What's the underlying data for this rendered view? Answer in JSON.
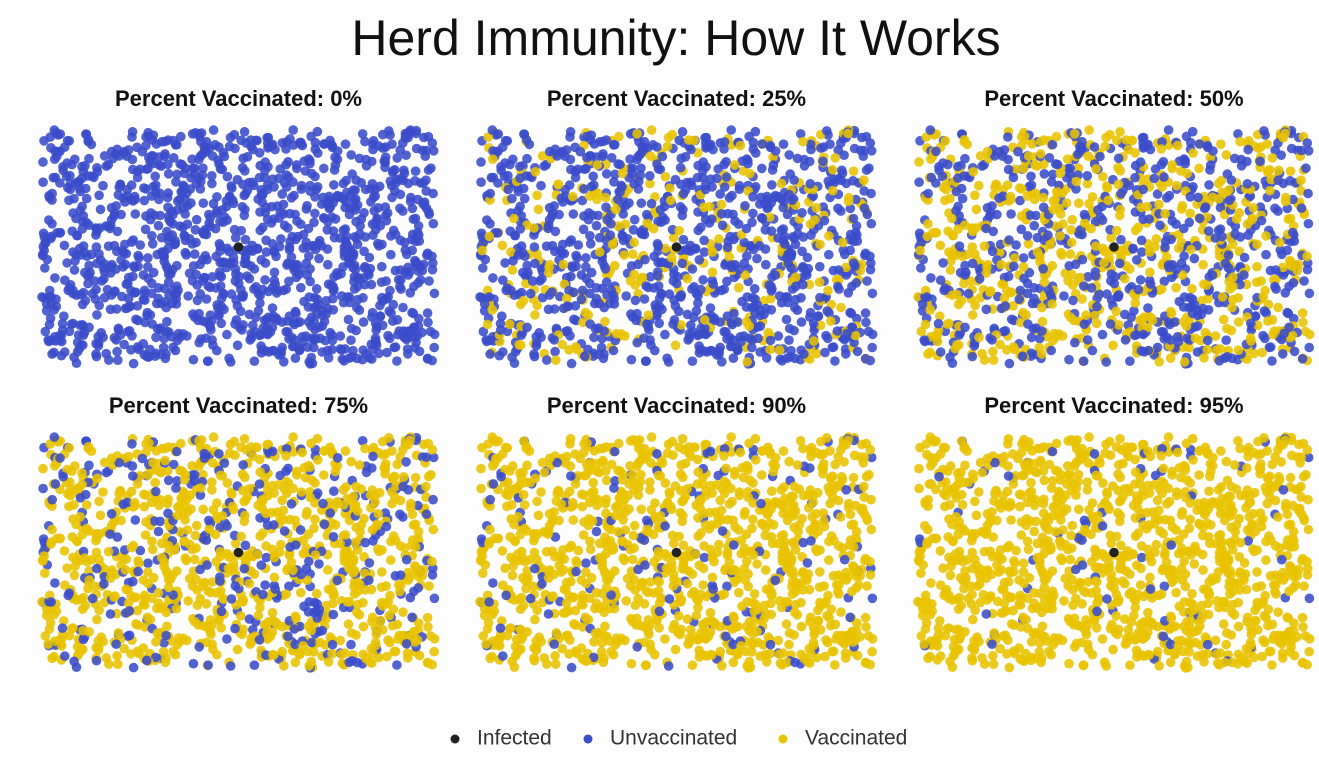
{
  "chart_data": {
    "type": "scatter",
    "title": "Herd Immunity: How It Works",
    "panels": [
      {
        "title": "Percent Vaccinated: 0%",
        "vaccinated": 0
      },
      {
        "title": "Percent Vaccinated: 25%",
        "vaccinated": 25
      },
      {
        "title": "Percent Vaccinated: 50%",
        "vaccinated": 50
      },
      {
        "title": "Percent Vaccinated: 75%",
        "vaccinated": 75
      },
      {
        "title": "Percent Vaccinated: 90%",
        "vaccinated": 90
      },
      {
        "title": "Percent Vaccinated: 95%",
        "vaccinated": 95
      }
    ],
    "series": [
      {
        "name": "Infected",
        "color": "#222222"
      },
      {
        "name": "Unvaccinated",
        "color": "#3a4cc9"
      },
      {
        "name": "Vaccinated",
        "color": "#e8c300"
      }
    ]
  }
}
